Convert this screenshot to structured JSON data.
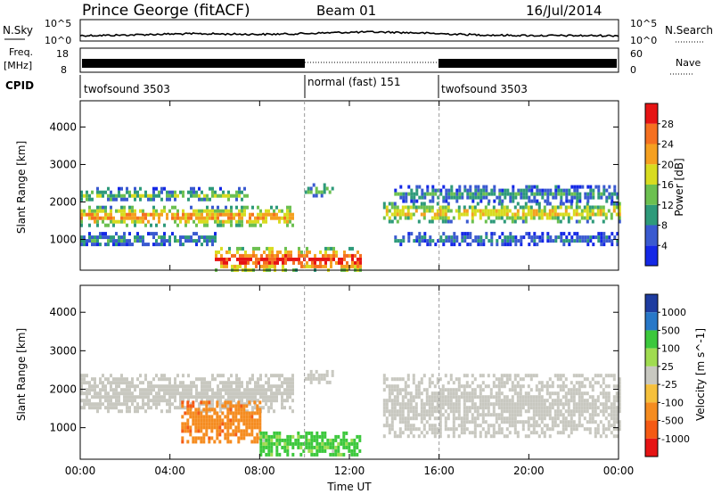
{
  "header": {
    "station": "Prince George (fitACF)",
    "beam": "Beam 01",
    "date": "16/Jul/2014"
  },
  "strips": {
    "nsky_label": "N.Sky",
    "nsky_ticks": [
      "10^5",
      "10^0"
    ],
    "nsearch_label": "N.Search",
    "nsearch_ticks": [
      "10^5",
      "10^0"
    ],
    "freq_label_line1": "Freq.",
    "freq_label_line2": "[MHz]",
    "freq_ticks": [
      "18",
      "8"
    ],
    "nave_label": "Nave",
    "nave_ticks": [
      "60",
      "0"
    ],
    "cpid_label": "CPID",
    "cpid_segments": [
      {
        "name": "twofsound 3503",
        "start_h": 0,
        "end_h": 10
      },
      {
        "name": "normal (fast) 151",
        "start_h": 10,
        "end_h": 16
      },
      {
        "name": "twofsound 3503",
        "start_h": 16,
        "end_h": 24
      }
    ]
  },
  "chart_data": [
    {
      "type": "heatmap",
      "quantity": "Power",
      "ylabel": "Slant Range [km]",
      "xlabel": "",
      "x_ticks": [
        "00:00",
        "04:00",
        "08:00",
        "12:00",
        "16:00",
        "20:00",
        "00:00"
      ],
      "y_ticks": [
        "1000",
        "2000",
        "3000",
        "4000"
      ],
      "xlim_hours": [
        0,
        24
      ],
      "ylim_km": [
        180,
        4700
      ],
      "colorbar": {
        "label": "Power [dB]",
        "ticks": [
          "4",
          "8",
          "12",
          "16",
          "20",
          "24",
          "28"
        ],
        "range": [
          0,
          32
        ],
        "colors": [
          "#1428e6",
          "#3a5ad0",
          "#2e9a7a",
          "#6cc050",
          "#d8dc20",
          "#f5a020",
          "#f57020",
          "#e61414"
        ]
      },
      "bands": [
        {
          "t0": 0,
          "t1": 9.5,
          "r0": 1400,
          "r1": 1900,
          "level": 24
        },
        {
          "t0": 0,
          "t1": 7.5,
          "r0": 2050,
          "r1": 2400,
          "level": 14
        },
        {
          "t0": 0,
          "t1": 6,
          "r0": 900,
          "r1": 1200,
          "level": 10
        },
        {
          "t0": 6,
          "t1": 12.5,
          "r0": 200,
          "r1": 800,
          "level": 30
        },
        {
          "t0": 10,
          "t1": 11.2,
          "r0": 2200,
          "r1": 2500,
          "level": 12
        },
        {
          "t0": 13.5,
          "t1": 24,
          "r0": 1500,
          "r1": 2000,
          "level": 20
        },
        {
          "t0": 14,
          "t1": 24,
          "r0": 2050,
          "r1": 2450,
          "level": 10
        },
        {
          "t0": 14,
          "t1": 24,
          "r0": 900,
          "r1": 1200,
          "level": 8
        }
      ]
    },
    {
      "type": "heatmap",
      "quantity": "Velocity",
      "ylabel": "Slant Range [km]",
      "xlabel": "Time UT",
      "x_ticks": [
        "00:00",
        "04:00",
        "08:00",
        "12:00",
        "16:00",
        "20:00",
        "00:00"
      ],
      "y_ticks": [
        "1000",
        "2000",
        "3000",
        "4000"
      ],
      "xlim_hours": [
        0,
        24
      ],
      "ylim_km": [
        180,
        4700
      ],
      "colorbar": {
        "label": "Velocity [m s^-1]",
        "ticks": [
          "1000",
          "500",
          "100",
          "25",
          "-25",
          "-100",
          "-500",
          "-1000"
        ],
        "colors": [
          "#1e3ca0",
          "#2878c8",
          "#3cc83c",
          "#a0dc50",
          "#c8c8c0",
          "#f5c03c",
          "#f58c20",
          "#f55a14",
          "#e61414"
        ]
      },
      "bands": [
        {
          "t0": 0,
          "t1": 9.5,
          "r0": 1400,
          "r1": 2400,
          "level": 0
        },
        {
          "t0": 4.5,
          "t1": 8,
          "r0": 600,
          "r1": 1700,
          "level": -200
        },
        {
          "t0": 8,
          "t1": 12.5,
          "r0": 300,
          "r1": 900,
          "level": 150
        },
        {
          "t0": 10,
          "t1": 11.2,
          "r0": 2200,
          "r1": 2500,
          "level": 0
        },
        {
          "t0": 13.5,
          "t1": 24,
          "r0": 800,
          "r1": 2400,
          "level": 0
        }
      ]
    }
  ]
}
